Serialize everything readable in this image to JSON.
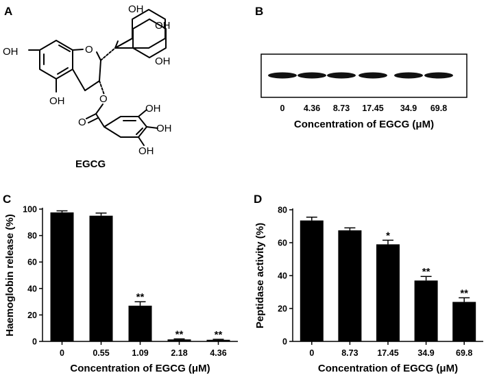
{
  "panels": {
    "a": {
      "letter": "A",
      "compound_name": "EGCG",
      "hydroxyl_label": "OH",
      "ring_oxygen_label": "O",
      "carbonyl_label": "O",
      "ester_oxygen_label": "O"
    },
    "b": {
      "letter": "B",
      "lane_labels": [
        "0",
        "4.36",
        "8.73",
        "17.45",
        "34.9",
        "69.8"
      ],
      "xlabel": "Concentration of EGCG (μM)"
    },
    "c": {
      "letter": "C"
    },
    "d": {
      "letter": "D"
    }
  },
  "chart_data": [
    {
      "panel": "C",
      "type": "bar",
      "categories": [
        "0",
        "0.55",
        "1.09",
        "2.18",
        "4.36"
      ],
      "values": [
        97.5,
        95,
        27,
        1.5,
        1.2
      ],
      "errors": [
        1.2,
        2.0,
        3.0,
        0.4,
        0.4
      ],
      "annotations": [
        "",
        "",
        "**",
        "**",
        "**"
      ],
      "xlabel": "Concentration of EGCG (μM)",
      "ylabel": "Haemoglobin release (%)",
      "ylim": [
        0,
        100
      ],
      "yticks": [
        0,
        20,
        40,
        60,
        80,
        100
      ],
      "grid": false,
      "bar_color": "#000000"
    },
    {
      "panel": "D",
      "type": "bar",
      "categories": [
        "0",
        "8.73",
        "17.45",
        "34.9",
        "69.8"
      ],
      "values": [
        73.5,
        67.5,
        59,
        37,
        24
      ],
      "errors": [
        2.0,
        1.5,
        2.5,
        2.5,
        2.5
      ],
      "annotations": [
        "",
        "",
        "*",
        "**",
        "**"
      ],
      "xlabel": "Concentration of EGCG (μM)",
      "ylabel": "Peptidase activity (%)",
      "ylim": [
        0,
        80
      ],
      "yticks": [
        0,
        20,
        40,
        60,
        80
      ],
      "grid": false,
      "bar_color": "#000000"
    }
  ]
}
